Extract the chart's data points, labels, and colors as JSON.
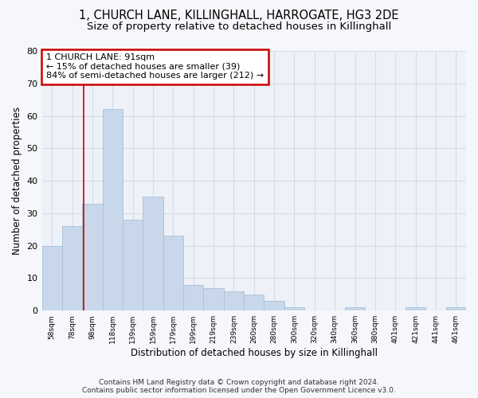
{
  "title1": "1, CHURCH LANE, KILLINGHALL, HARROGATE, HG3 2DE",
  "title2": "Size of property relative to detached houses in Killinghall",
  "xlabel": "Distribution of detached houses by size in Killinghall",
  "ylabel": "Number of detached properties",
  "categories": [
    "58sqm",
    "78sqm",
    "98sqm",
    "118sqm",
    "139sqm",
    "159sqm",
    "179sqm",
    "199sqm",
    "219sqm",
    "239sqm",
    "260sqm",
    "280sqm",
    "300sqm",
    "320sqm",
    "340sqm",
    "360sqm",
    "380sqm",
    "401sqm",
    "421sqm",
    "441sqm",
    "461sqm"
  ],
  "values": [
    20,
    26,
    33,
    62,
    28,
    35,
    23,
    8,
    7,
    6,
    5,
    3,
    1,
    0,
    0,
    1,
    0,
    0,
    1,
    0,
    1
  ],
  "bar_color": "#c8d8ea",
  "bar_edge_color": "#a8c0d8",
  "grid_color": "#d4dce8",
  "annotation_box_facecolor": "#ffffff",
  "annotation_border_color": "#cc0000",
  "vline_color": "#cc0000",
  "vline_x_index": 1.55,
  "annotation_line1": "1 CHURCH LANE: 91sqm",
  "annotation_line2": "← 15% of detached houses are smaller (39)",
  "annotation_line3": "84% of semi-detached houses are larger (212) →",
  "ylim": [
    0,
    80
  ],
  "yticks": [
    0,
    10,
    20,
    30,
    40,
    50,
    60,
    70,
    80
  ],
  "plot_bg_color": "#eef2f8",
  "fig_bg_color": "#f5f7fa",
  "title1_fontsize": 10.5,
  "title2_fontsize": 9.5,
  "footer_text": "Contains HM Land Registry data © Crown copyright and database right 2024.\nContains public sector information licensed under the Open Government Licence v3.0."
}
